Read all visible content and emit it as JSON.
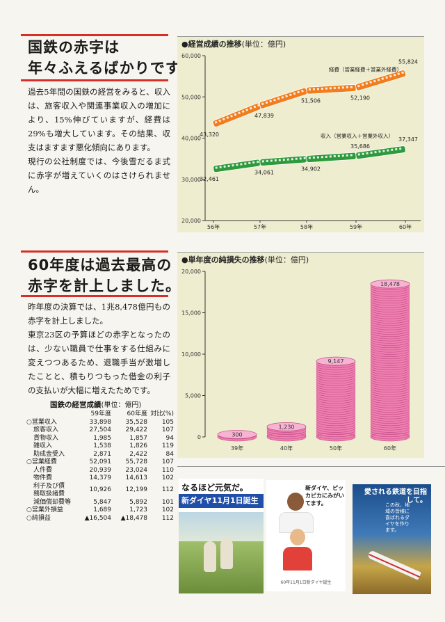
{
  "section1": {
    "heading_line1": "国鉄の赤字は",
    "heading_line2": "年々ふえるばかりです。",
    "paragraph1": "過去5年間の国鉄の経営をみると、収入は、旅客収入や関連事業収入の増加により、15%伸びていますが、経費は29%も増大しています。その結果、収支はますます悪化傾向にあります。",
    "paragraph2": "現行の公社制度では、今後雪だるま式に赤字が増えていくのはさけられません。"
  },
  "section2": {
    "heading_line1": "60年度は過去最高の",
    "heading_line2": "赤字を計上しました。",
    "paragraph1": "昨年度の決算では、1兆8,478億円もの赤字を計上しました。",
    "paragraph2": "東京23区の予算ほどの赤字となったのは、少ない職員で仕事をする仕組みに変えつつあるため、退職手当が激増したことと、積もりつもった借金の利子の支払いが大幅に増えたためです。"
  },
  "line_chart_panel": {
    "title": "●経営成績の推移",
    "unit": "(単位：億円)"
  },
  "bar_chart_panel": {
    "title": "●単年度の純損失の推移",
    "unit": "(単位：億円)"
  },
  "chart_data": [
    {
      "type": "line",
      "x": [
        "56年",
        "57年",
        "58年",
        "59年",
        "60年"
      ],
      "ylim": [
        20000,
        60000
      ],
      "yticks": [
        "20,000",
        "30,000",
        "40,000",
        "50,000",
        "60,000"
      ],
      "grid": false,
      "series": [
        {
          "name": "経費（営業経費＋営業外経費）",
          "values": [
            43320,
            47839,
            51506,
            52190,
            55824
          ],
          "labels": [
            "43,320",
            "47,839",
            "51,506",
            "52,190",
            "55,824"
          ],
          "color": "#f07d1e"
        },
        {
          "name": "収入（営業収入＋営業外収入）",
          "values": [
            32461,
            34061,
            34902,
            35686,
            37347
          ],
          "labels": [
            "32,461",
            "34,061",
            "34,902",
            "35,686",
            "37,347"
          ],
          "color": "#2e9a3c"
        }
      ]
    },
    {
      "type": "bar",
      "categories": [
        "39年",
        "40年",
        "50年",
        "60年"
      ],
      "values": [
        300,
        1230,
        9147,
        18478
      ],
      "labels": [
        "300",
        "1,230",
        "9,147",
        "18,478"
      ],
      "ylim": [
        0,
        20000
      ],
      "yticks": [
        "0",
        "5,000",
        "10,000",
        "15,000",
        "20,000"
      ],
      "color": "#ef7fb0"
    }
  ],
  "table": {
    "title": "国鉄の経営成績",
    "unit": "(単位：億円)",
    "headers": [
      "",
      "59年度",
      "60年度",
      "対比(%)"
    ],
    "rows": [
      {
        "label": "○営業収入",
        "a": "33,898",
        "b": "35,528",
        "c": "105",
        "indent": false
      },
      {
        "label": "旅客収入",
        "a": "27,504",
        "b": "29,422",
        "c": "107",
        "indent": true
      },
      {
        "label": "貨物収入",
        "a": "1,985",
        "b": "1,857",
        "c": "94",
        "indent": true
      },
      {
        "label": "雑収入",
        "a": "1,538",
        "b": "1,826",
        "c": "119",
        "indent": true
      },
      {
        "label": "助成金受入",
        "a": "2,871",
        "b": "2,422",
        "c": "84",
        "indent": true
      },
      {
        "label": "○営業経費",
        "a": "52,091",
        "b": "55,728",
        "c": "107",
        "indent": false
      },
      {
        "label": "人件費",
        "a": "20,939",
        "b": "23,024",
        "c": "110",
        "indent": true
      },
      {
        "label": "物件費",
        "a": "14,379",
        "b": "14,613",
        "c": "102",
        "indent": true
      },
      {
        "label": "利子及び債務取扱諸費",
        "label_line1": "利子及び債",
        "label_line2": "務取扱諸費",
        "a": "10,926",
        "b": "12,199",
        "c": "112",
        "indent": true,
        "tall": true
      },
      {
        "label": "減価償却費等",
        "a": "5,847",
        "b": "5,892",
        "c": "101",
        "indent": true
      },
      {
        "label": "○営業外損益",
        "a": "1,689",
        "b": "1,723",
        "c": "102",
        "indent": false
      },
      {
        "label": "○純損益",
        "a": "▲16,504",
        "b": "▲18,478",
        "c": "112",
        "indent": false
      }
    ]
  },
  "posters": {
    "p1_line1": "なるほど元気だ。",
    "p1_line2": "新ダイヤ11月1日誕生",
    "p2_text": "新ダイヤ、ピッカピカにみがいてます。",
    "p2_footer": "60年11月1日新ダイヤ誕生",
    "p3_title": "愛される鉄道を目指して。",
    "p3_sub": "この秋、地域の皆様に喜ばれるダイヤを作ります。"
  }
}
